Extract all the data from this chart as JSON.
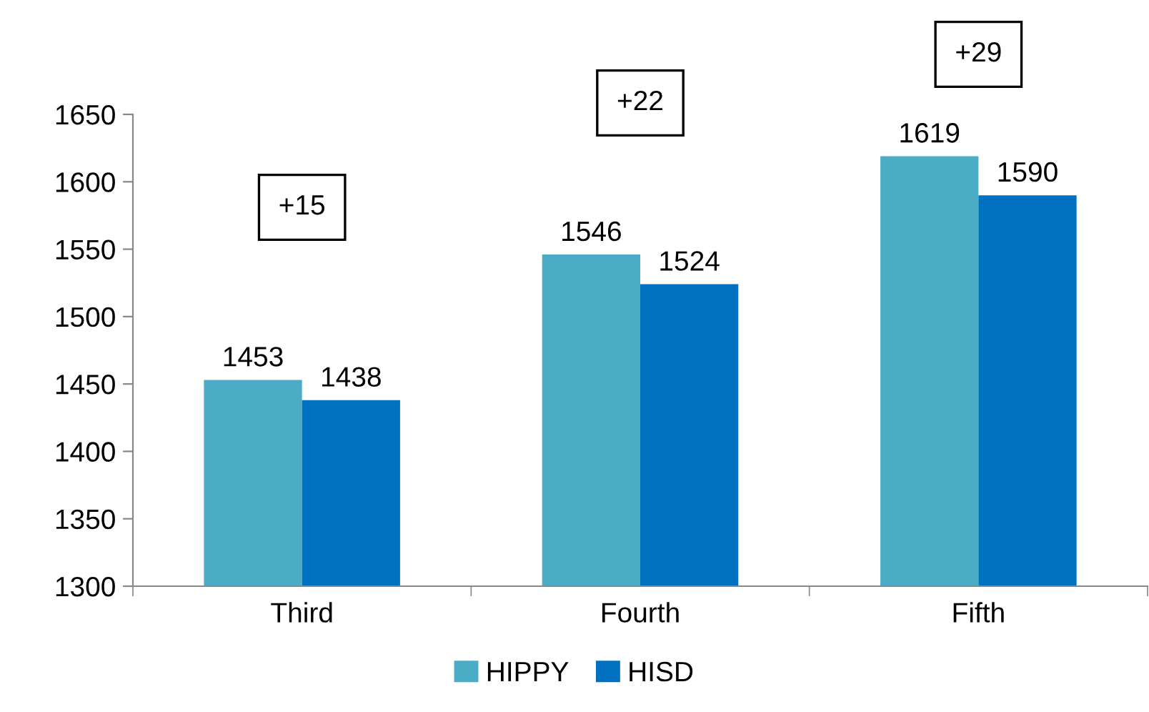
{
  "chart_data": {
    "type": "bar",
    "categories": [
      "Third",
      "Fourth",
      "Fifth"
    ],
    "series": [
      {
        "name": "HIPPY",
        "color": "#4bacc6",
        "values": [
          1453,
          1546,
          1619
        ]
      },
      {
        "name": "HISD",
        "color": "#0070c0",
        "values": [
          1438,
          1524,
          1590
        ]
      }
    ],
    "ylim": [
      1300,
      1650
    ],
    "yticks": [
      1300,
      1350,
      1400,
      1450,
      1500,
      1550,
      1600,
      1650
    ],
    "data_labels": true,
    "legend": "bottom",
    "grid": false,
    "annotations": [
      "+15",
      "+22",
      "+29"
    ]
  }
}
